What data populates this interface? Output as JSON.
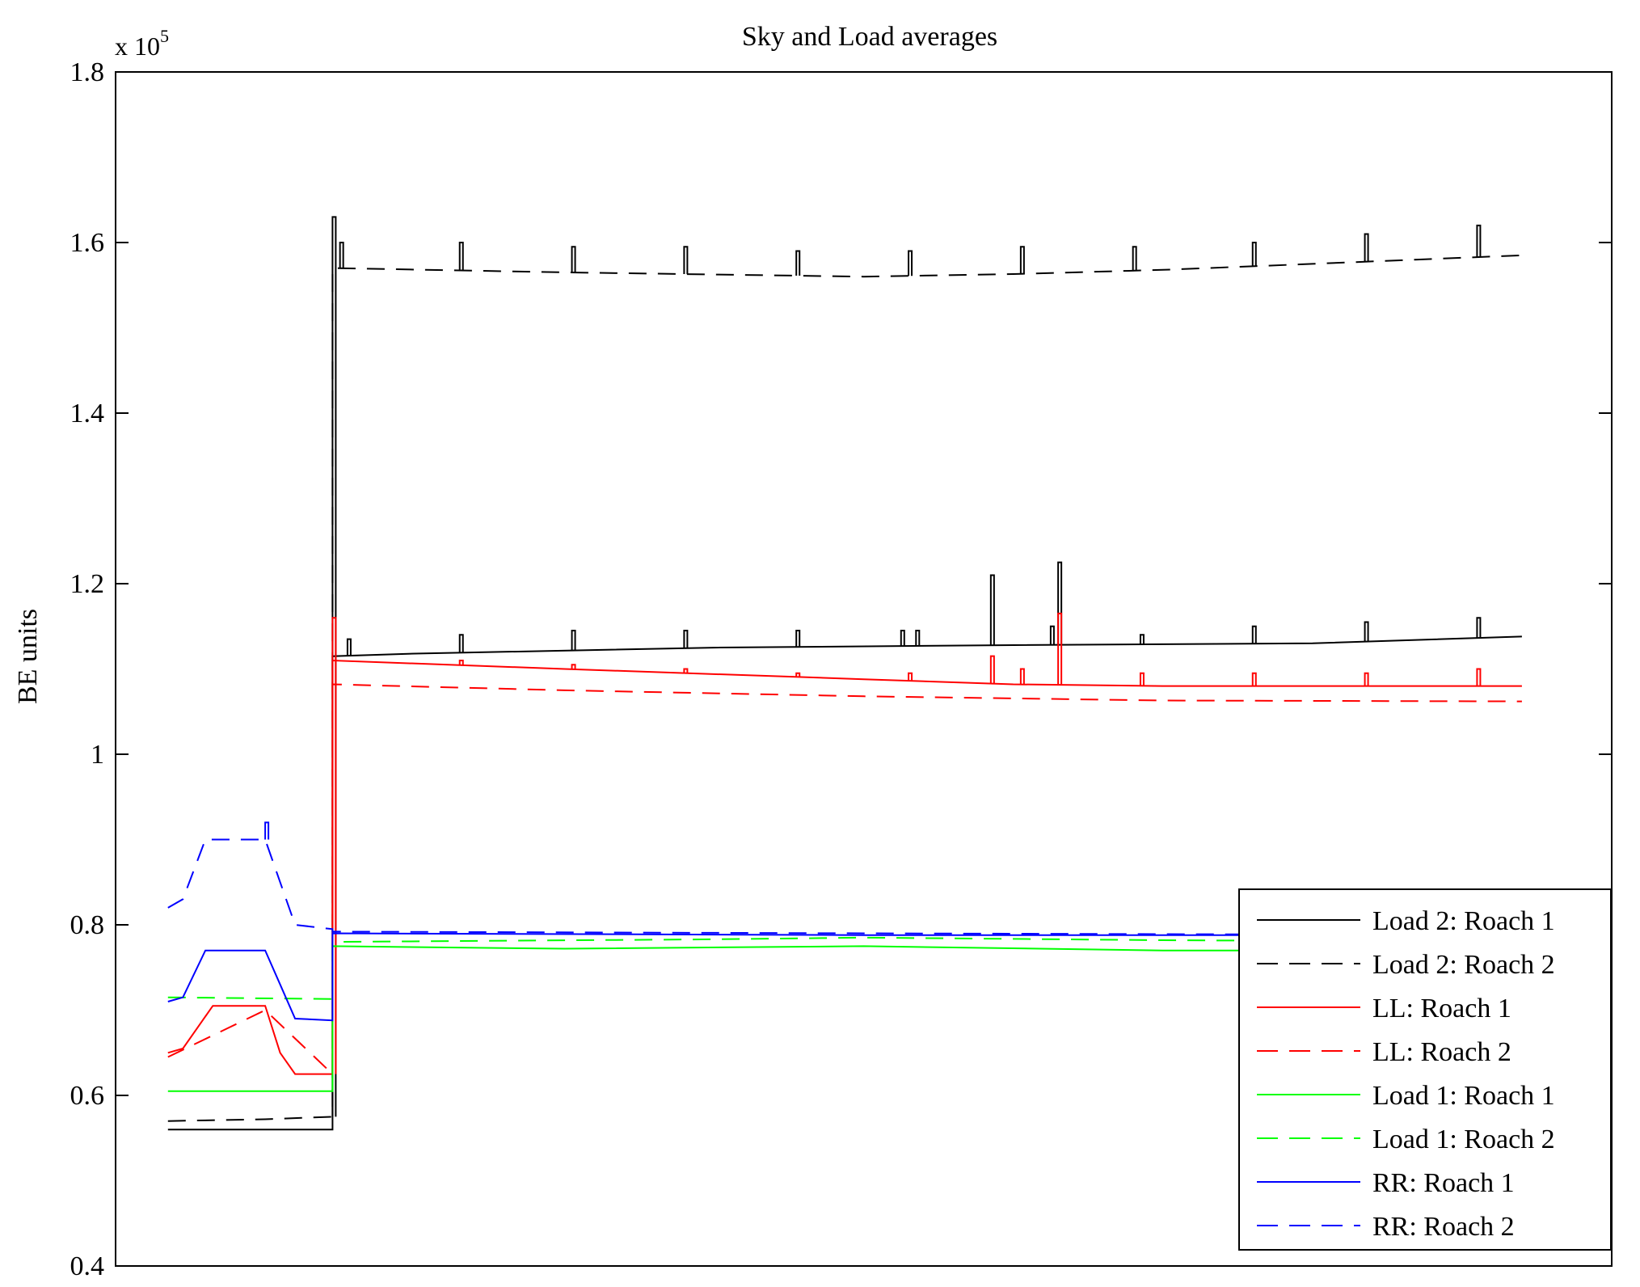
{
  "chart_data": {
    "type": "line",
    "title": "Sky and Load averages",
    "ylabel": "BE units",
    "xlabel": "",
    "exponent_label": "x 10",
    "exponent_power": "5",
    "ylim": [
      40000,
      180000
    ],
    "xlim": [
      0,
      1000
    ],
    "y_ticks": [
      {
        "value": 40000,
        "label": "0.4"
      },
      {
        "value": 60000,
        "label": "0.6"
      },
      {
        "value": 80000,
        "label": "0.8"
      },
      {
        "value": 100000,
        "label": "1"
      },
      {
        "value": 120000,
        "label": "1.2"
      },
      {
        "value": 140000,
        "label": "1.4"
      },
      {
        "value": 160000,
        "label": "1.6"
      },
      {
        "value": 180000,
        "label": "1.8"
      }
    ],
    "legend_placement": "bottom-right",
    "grid": false,
    "series": [
      {
        "name": "Load 2: Roach 1",
        "color": "#000000",
        "dash": "solid",
        "points": [
          [
            35,
            56000
          ],
          [
            100,
            56000
          ],
          [
            145,
            56000
          ],
          [
            145,
            111500
          ],
          [
            200,
            111800
          ],
          [
            400,
            112500
          ],
          [
            600,
            112800
          ],
          [
            800,
            113000
          ],
          [
            940,
            113800
          ]
        ],
        "spikes": [
          [
            155,
            113500
          ],
          [
            230,
            114000
          ],
          [
            305,
            114500
          ],
          [
            380,
            114500
          ],
          [
            455,
            114500
          ],
          [
            525,
            114500
          ],
          [
            535,
            114500
          ],
          [
            585,
            121000
          ],
          [
            625,
            115000
          ],
          [
            630,
            122500
          ],
          [
            685,
            114000
          ],
          [
            760,
            115000
          ],
          [
            835,
            115500
          ],
          [
            910,
            116000
          ]
        ]
      },
      {
        "name": "Load 2: Roach 2",
        "color": "#000000",
        "dash": "dashed",
        "points": [
          [
            35,
            57000
          ],
          [
            100,
            57200
          ],
          [
            145,
            57500
          ],
          [
            145,
            157000
          ],
          [
            300,
            156500
          ],
          [
            500,
            156000
          ],
          [
            600,
            156300
          ],
          [
            700,
            156800
          ],
          [
            800,
            157500
          ],
          [
            870,
            158000
          ],
          [
            940,
            158500
          ]
        ],
        "spikes": [
          [
            145,
            163000
          ],
          [
            150,
            160000
          ],
          [
            230,
            160000
          ],
          [
            305,
            159500
          ],
          [
            380,
            159500
          ],
          [
            455,
            159000
          ],
          [
            530,
            159000
          ],
          [
            605,
            159500
          ],
          [
            680,
            159500
          ],
          [
            760,
            160000
          ],
          [
            835,
            161000
          ],
          [
            910,
            162000
          ]
        ]
      },
      {
        "name": "LL: Roach 1",
        "color": "#ff0000",
        "dash": "solid",
        "points": [
          [
            35,
            65000
          ],
          [
            45,
            65500
          ],
          [
            65,
            70500
          ],
          [
            100,
            70500
          ],
          [
            110,
            65000
          ],
          [
            120,
            62500
          ],
          [
            145,
            62500
          ],
          [
            145,
            111000
          ],
          [
            300,
            110000
          ],
          [
            500,
            108800
          ],
          [
            600,
            108200
          ],
          [
            700,
            108000
          ],
          [
            940,
            108000
          ]
        ],
        "spikes": [
          [
            145,
            116000
          ],
          [
            230,
            111000
          ],
          [
            305,
            110500
          ],
          [
            380,
            110000
          ],
          [
            455,
            109500
          ],
          [
            530,
            109500
          ],
          [
            585,
            111500
          ],
          [
            605,
            110000
          ],
          [
            630,
            116500
          ],
          [
            685,
            109500
          ],
          [
            760,
            109500
          ],
          [
            835,
            109500
          ],
          [
            910,
            110000
          ]
        ]
      },
      {
        "name": "LL: Roach 2",
        "color": "#ff0000",
        "dash": "dashed",
        "points": [
          [
            35,
            64500
          ],
          [
            100,
            70000
          ],
          [
            145,
            62500
          ],
          [
            145,
            108200
          ],
          [
            300,
            107500
          ],
          [
            500,
            106800
          ],
          [
            700,
            106300
          ],
          [
            940,
            106200
          ]
        ],
        "spikes": []
      },
      {
        "name": "Load 1: Roach 1",
        "color": "#00ff00",
        "dash": "solid",
        "points": [
          [
            35,
            60500
          ],
          [
            145,
            60500
          ],
          [
            145,
            77500
          ],
          [
            300,
            77200
          ],
          [
            500,
            77500
          ],
          [
            700,
            77000
          ],
          [
            940,
            77000
          ]
        ],
        "spikes": []
      },
      {
        "name": "Load 1: Roach 2",
        "color": "#00ff00",
        "dash": "dashed",
        "points": [
          [
            35,
            71500
          ],
          [
            145,
            71300
          ],
          [
            145,
            78000
          ],
          [
            400,
            78300
          ],
          [
            500,
            78500
          ],
          [
            700,
            78200
          ],
          [
            940,
            78000
          ]
        ],
        "spikes": []
      },
      {
        "name": "RR: Roach 1",
        "color": "#0000ff",
        "dash": "solid",
        "points": [
          [
            35,
            71000
          ],
          [
            45,
            71500
          ],
          [
            60,
            77000
          ],
          [
            100,
            77000
          ],
          [
            110,
            73000
          ],
          [
            120,
            69000
          ],
          [
            145,
            68800
          ],
          [
            145,
            79000
          ],
          [
            500,
            78800
          ],
          [
            940,
            78800
          ]
        ],
        "spikes": []
      },
      {
        "name": "RR: Roach 2",
        "color": "#0000ff",
        "dash": "dashed",
        "points": [
          [
            35,
            82000
          ],
          [
            45,
            83000
          ],
          [
            60,
            90000
          ],
          [
            100,
            90000
          ],
          [
            110,
            85000
          ],
          [
            120,
            80000
          ],
          [
            145,
            79500
          ],
          [
            145,
            79200
          ],
          [
            500,
            79000
          ],
          [
            940,
            78800
          ]
        ],
        "spikes": [
          [
            100,
            92000
          ]
        ]
      }
    ]
  }
}
